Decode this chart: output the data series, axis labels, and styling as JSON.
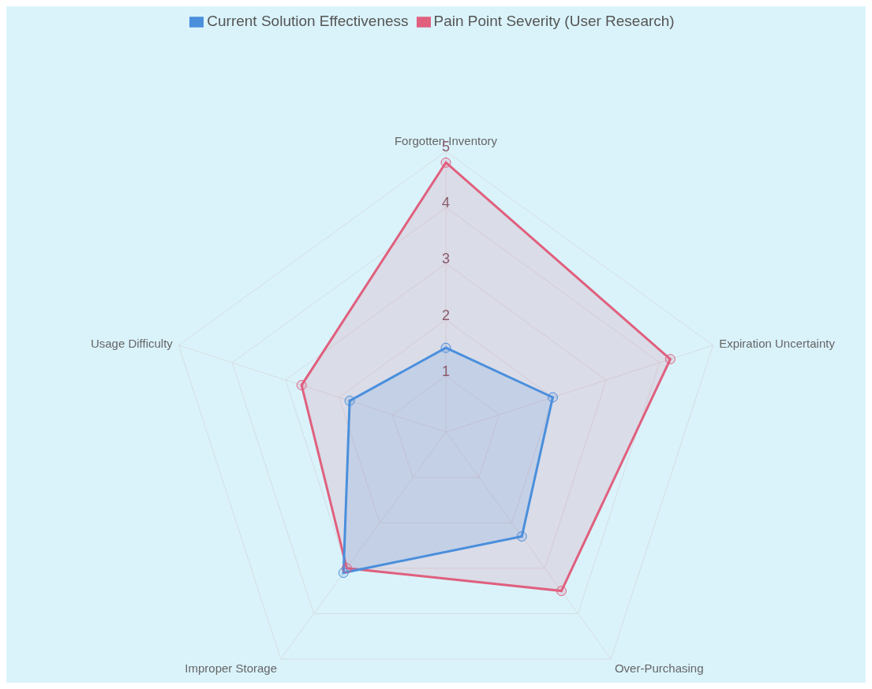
{
  "chart_data": {
    "type": "radar",
    "categories": [
      "Forgotten Inventory",
      "Expiration Uncertainty",
      "Over-Purchasing",
      "Improper Storage",
      "Usage Difficulty"
    ],
    "series": [
      {
        "name": "Pain Point Severity (User Research)",
        "color": "#e0607e",
        "values": [
          4.8,
          4.2,
          3.5,
          3.0,
          2.7
        ]
      },
      {
        "name": "Current Solution Effectiveness",
        "color": "#4a8fdc",
        "values": [
          1.5,
          2.0,
          2.3,
          3.1,
          1.8
        ]
      }
    ],
    "ylim": [
      0,
      5
    ],
    "yticks": [
      1,
      2,
      3,
      4,
      5
    ],
    "grid": true,
    "legend": "top",
    "marker": "circle"
  }
}
